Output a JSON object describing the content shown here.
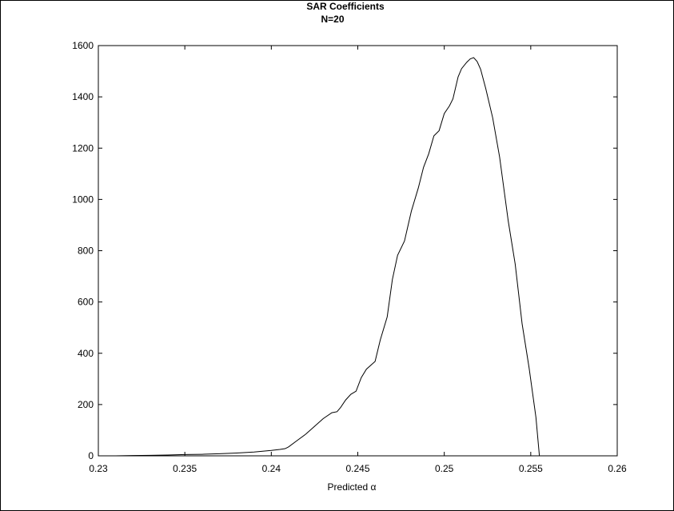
{
  "chart_data": {
    "type": "line",
    "title": "SAR Coefficients",
    "subtitle": "N=20",
    "xlabel": "Predicted α",
    "ylabel": "",
    "xlim": [
      0.23,
      0.26
    ],
    "ylim": [
      0,
      1600
    ],
    "grid": false,
    "xticks": [
      0.23,
      0.235,
      0.24,
      0.245,
      0.25,
      0.255,
      0.26
    ],
    "xtick_labels": [
      "0.23",
      "0.235",
      "0.24",
      "0.245",
      "0.25",
      "0.255",
      "0.26"
    ],
    "yticks": [
      0,
      200,
      400,
      600,
      800,
      1000,
      1200,
      1400,
      1600
    ],
    "ytick_labels": [
      "0",
      "200",
      "400",
      "600",
      "800",
      "1000",
      "1200",
      "1400",
      "1600"
    ],
    "series": [
      {
        "color": "#000000",
        "x": [
          0.231,
          0.232,
          0.233,
          0.234,
          0.235,
          0.236,
          0.237,
          0.238,
          0.239,
          0.2395,
          0.24,
          0.2405,
          0.2408,
          0.241,
          0.2415,
          0.242,
          0.2425,
          0.243,
          0.2435,
          0.2438,
          0.244,
          0.2443,
          0.2446,
          0.2449,
          0.2452,
          0.2455,
          0.246,
          0.2463,
          0.2467,
          0.247,
          0.2473,
          0.2477,
          0.2481,
          0.2485,
          0.2488,
          0.2491,
          0.2494,
          0.2497,
          0.25,
          0.2503,
          0.2505,
          0.2508,
          0.251,
          0.2513,
          0.2515,
          0.2517,
          0.2519,
          0.2521,
          0.2524,
          0.2528,
          0.2532,
          0.2537,
          0.2541,
          0.2545,
          0.2549,
          0.2553,
          0.2555
        ],
        "y": [
          0,
          1,
          2,
          3,
          5,
          6,
          8,
          11,
          15,
          18,
          21,
          25,
          28,
          35,
          60,
          85,
          115,
          145,
          168,
          172,
          188,
          218,
          240,
          252,
          305,
          338,
          368,
          452,
          542,
          688,
          782,
          838,
          955,
          1045,
          1125,
          1178,
          1248,
          1268,
          1335,
          1365,
          1392,
          1478,
          1510,
          1535,
          1548,
          1553,
          1538,
          1508,
          1432,
          1318,
          1165,
          915,
          748,
          515,
          345,
          150,
          0
        ]
      }
    ]
  }
}
